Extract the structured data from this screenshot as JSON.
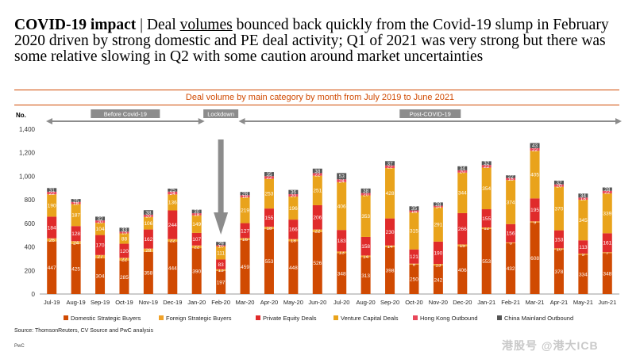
{
  "headline": {
    "bold": "COVID-19 impact",
    "sep": " | Deal ",
    "underlined": "volumes",
    "rest": " bounced back quickly from the Covid-19 slump in February 2020 driven by strong domestic and PE deal activity; Q1 of 2021 was very strong but there was some relative slowing in Q2 with some caution around market uncertainties"
  },
  "source": "Source: ThomsonReuters, CV Source and PwC analysis",
  "footer_brand": "PwC",
  "watermark": "港股号 @港大ICB",
  "colors": {
    "accent": "#d04a02",
    "domestic": "#d04a02",
    "foreign": "#f0a22a",
    "pe": "#e02b2b",
    "vc": "#e9a31b",
    "hk": "#e8485a",
    "china": "#555555",
    "period_bar": "#8c8c8c"
  },
  "chart_data": {
    "type": "bar",
    "stacked": true,
    "title": "Deal volume by main category by month from July 2019 to June 2021",
    "ylabel": "No.",
    "ylim": [
      0,
      1400
    ],
    "yticks": [
      0,
      200,
      400,
      600,
      800,
      1000,
      1200,
      1400
    ],
    "grid": false,
    "legend_position": "bottom",
    "categories": [
      "Jul-19",
      "Aug-19",
      "Sep-19",
      "Oct-19",
      "Nov-19",
      "Dec-19",
      "Jan-20",
      "Feb-20",
      "Mar-20",
      "Apr-20",
      "May-20",
      "Jun-20",
      "Jul-20",
      "Aug-20",
      "Sep-20",
      "Oct-20",
      "Nov-20",
      "Dec-20",
      "Jan-21",
      "Feb-21",
      "Mar-21",
      "Apr-21",
      "May-21",
      "Jun-21"
    ],
    "series": [
      {
        "name": "Domestic Strategic Buyers",
        "color": "#d04a02",
        "values": [
          447,
          425,
          304,
          285,
          358,
          444,
          390,
          197,
          459,
          553,
          448,
          526,
          348,
          313,
          398,
          250,
          242,
          406,
          553,
          432,
          608,
          378,
          334,
          348
        ]
      },
      {
        "name": "Foreign Strategic Buyers",
        "color": "#f0a22a",
        "values": [
          26,
          24,
          27,
          22,
          28,
          22,
          22,
          13,
          16,
          18,
          18,
          22,
          13,
          14,
          14,
          8,
          13,
          15,
          12,
          6,
          9,
          10,
          9,
          7
        ]
      },
      {
        "name": "Private Equity Deals",
        "color": "#e02b2b",
        "values": [
          184,
          128,
          170,
          120,
          162,
          244,
          107,
          83,
          127,
          155,
          166,
          206,
          183,
          158,
          230,
          121,
          190,
          266,
          155,
          156,
          195,
          153,
          113,
          161
        ]
      },
      {
        "name": "Venture Capital Deals",
        "color": "#e9a31b",
        "values": [
          190,
          187,
          104,
          88,
          106,
          136,
          149,
          111,
          219,
          253,
          196,
          251,
          406,
          353,
          428,
          315,
          291,
          344,
          354,
          374,
          405,
          370,
          345,
          339
        ]
      },
      {
        "name": "Hong Kong Outbound",
        "color": "#e8485a",
        "values": [
          22,
          18,
          20,
          15,
          20,
          24,
          18,
          10,
          18,
          22,
          20,
          22,
          24,
          20,
          22,
          16,
          14,
          20,
          22,
          18,
          22,
          20,
          18,
          22
        ]
      },
      {
        "name": "China Mainland Outbound",
        "color": "#555555",
        "values": [
          31,
          25,
          32,
          33,
          38,
          25,
          30,
          29,
          28,
          35,
          36,
          38,
          53,
          38,
          37,
          35,
          28,
          34,
          32,
          22,
          43,
          32,
          34,
          28
        ]
      }
    ],
    "segment_labels": {
      "Jul-19": [
        "447",
        "26",
        "184",
        "190",
        "22",
        "31"
      ],
      "Aug-19": [
        "425",
        "24",
        "128",
        "187",
        "18",
        "25"
      ],
      "Sep-19": [
        "304",
        "27",
        "170",
        "104",
        "20",
        "32"
      ],
      "Oct-19": [
        "285",
        "22",
        "120",
        "88",
        "15",
        "33"
      ],
      "Nov-19": [
        "358",
        "28",
        "162",
        "106",
        "20",
        "38"
      ],
      "Dec-19": [
        "444",
        "22",
        "244",
        "136",
        "24",
        "25"
      ],
      "Jan-20": [
        "390",
        "22",
        "107",
        "149",
        "18",
        "30"
      ],
      "Feb-20": [
        "197",
        "13",
        "83",
        "111",
        "10",
        "29"
      ],
      "Mar-20": [
        "459",
        "16",
        "127",
        "219",
        "18",
        "28"
      ],
      "Apr-20": [
        "553",
        "18",
        "155",
        "253",
        "22",
        "35"
      ],
      "May-20": [
        "448",
        "18",
        "166",
        "196",
        "20",
        "36"
      ],
      "Jun-20": [
        "526",
        "22",
        "206",
        "251",
        "22",
        "38"
      ],
      "Jul-20": [
        "348",
        "13",
        "183",
        "406",
        "24",
        "53"
      ],
      "Aug-20": [
        "313",
        "14",
        "158",
        "353",
        "20",
        "38"
      ],
      "Sep-20": [
        "398",
        "14",
        "230",
        "428",
        "22",
        "37"
      ],
      "Oct-20": [
        "250",
        "8",
        "121",
        "315",
        "16",
        "35"
      ],
      "Nov-20": [
        "242",
        "13",
        "190",
        "291",
        "14",
        "28"
      ],
      "Dec-20": [
        "406",
        "15",
        "266",
        "344",
        "20",
        "34"
      ],
      "Jan-21": [
        "553",
        "12",
        "155",
        "354",
        "22",
        "32"
      ],
      "Feb-21": [
        "432",
        "6",
        "156",
        "374",
        "18",
        "22"
      ],
      "Mar-21": [
        "608",
        "9",
        "195",
        "405",
        "22",
        "43"
      ],
      "Apr-21": [
        "378",
        "10",
        "153",
        "370",
        "20",
        "32"
      ],
      "May-21": [
        "334",
        "9",
        "113",
        "345",
        "18",
        "34"
      ],
      "Jun-21": [
        "348",
        "7",
        "161",
        "339",
        "22",
        "28"
      ]
    },
    "periods": [
      {
        "label": "Before Covid-19",
        "from": "Jul-19",
        "to": "Jan-20"
      },
      {
        "label": "Lockdown",
        "from": "Feb-20",
        "to": "Feb-20"
      },
      {
        "label": "Post-COVID-19",
        "from": "Mar-20",
        "to": "Jun-21"
      }
    ]
  }
}
